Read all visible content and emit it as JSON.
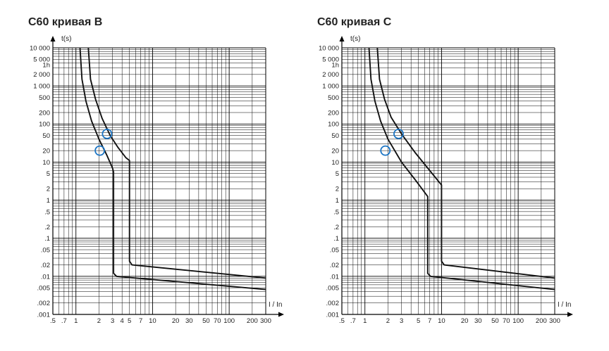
{
  "chart_data": [
    {
      "type": "line",
      "title": "C60 кривая B",
      "xlabel": "I / In",
      "ylabel": "t(s)",
      "x_scale": "log",
      "y_scale": "log",
      "xlim": [
        0.5,
        300
      ],
      "ylim": [
        0.001,
        10000
      ],
      "x_tick_labels": [
        ".5",
        ".7",
        "1",
        "2",
        "3",
        "4",
        "5",
        "7",
        "10",
        "20",
        "30",
        "50",
        "70",
        "100",
        "200",
        "300"
      ],
      "y_tick_labels": [
        "10 000",
        "5 000",
        "1h",
        "2 000",
        "1 000",
        "500",
        "200",
        "100",
        "50",
        "20",
        "10",
        "5",
        "2",
        "1",
        ".5",
        ".2",
        ".1",
        ".05",
        ".02",
        ".01",
        ".005",
        ".002",
        ".001"
      ],
      "grid": true,
      "series": [
        {
          "points": [
            [
              1.13,
              10000
            ],
            [
              1.2,
              1500
            ],
            [
              1.35,
              400
            ],
            [
              1.6,
              120
            ],
            [
              2.0,
              40
            ],
            [
              2.5,
              16
            ],
            [
              3.0,
              7
            ],
            [
              3.1,
              5.5
            ],
            [
              3.1,
              0.012
            ],
            [
              3.4,
              0.01
            ],
            [
              300,
              0.0045
            ]
          ]
        },
        {
          "points": [
            [
              1.45,
              10000
            ],
            [
              1.55,
              1500
            ],
            [
              1.8,
              450
            ],
            [
              2.2,
              140
            ],
            [
              2.8,
              50
            ],
            [
              3.5,
              25
            ],
            [
              4.5,
              13
            ],
            [
              5.0,
              11
            ],
            [
              5.0,
              0.025
            ],
            [
              5.4,
              0.02
            ],
            [
              300,
              0.009
            ]
          ]
        }
      ],
      "annotations": [
        {
          "shape": "circle",
          "x": 2.05,
          "y": 20
        },
        {
          "shape": "circle",
          "x": 2.55,
          "y": 55
        }
      ]
    },
    {
      "type": "line",
      "title": "C60 кривая C",
      "xlabel": "I / In",
      "ylabel": "t(s)",
      "x_scale": "log",
      "y_scale": "log",
      "xlim": [
        0.5,
        300
      ],
      "ylim": [
        0.001,
        10000
      ],
      "x_tick_labels": [
        ".5",
        ".7",
        "1",
        "2",
        "3",
        "5",
        "7",
        "10",
        "20",
        "30",
        "50",
        "70",
        "100",
        "200",
        "300"
      ],
      "y_tick_labels": [
        "10 000",
        "5 000",
        "1h",
        "2 000",
        "1 000",
        "500",
        "200",
        "100",
        "50",
        "20",
        "10",
        "5",
        "2",
        "1",
        ".5",
        ".2",
        ".1",
        ".05",
        ".02",
        ".01",
        ".005",
        ".002",
        ".001"
      ],
      "grid": true,
      "series": [
        {
          "points": [
            [
              1.13,
              10000
            ],
            [
              1.2,
              1500
            ],
            [
              1.35,
              400
            ],
            [
              1.6,
              120
            ],
            [
              2.0,
              40
            ],
            [
              3.0,
              10
            ],
            [
              4.5,
              3.5
            ],
            [
              6.5,
              1.3
            ],
            [
              6.6,
              1.25
            ],
            [
              6.6,
              0.012
            ],
            [
              7.2,
              0.01
            ],
            [
              300,
              0.0045
            ]
          ]
        },
        {
          "points": [
            [
              1.45,
              10000
            ],
            [
              1.55,
              1500
            ],
            [
              1.8,
              450
            ],
            [
              2.2,
              150
            ],
            [
              3.0,
              55
            ],
            [
              4.5,
              18
            ],
            [
              7.0,
              6
            ],
            [
              10,
              2.5
            ],
            [
              10,
              0.025
            ],
            [
              10.8,
              0.02
            ],
            [
              300,
              0.009
            ]
          ]
        }
      ],
      "annotations": [
        {
          "shape": "circle",
          "x": 1.85,
          "y": 20
        },
        {
          "shape": "circle",
          "x": 2.75,
          "y": 55
        }
      ]
    }
  ]
}
